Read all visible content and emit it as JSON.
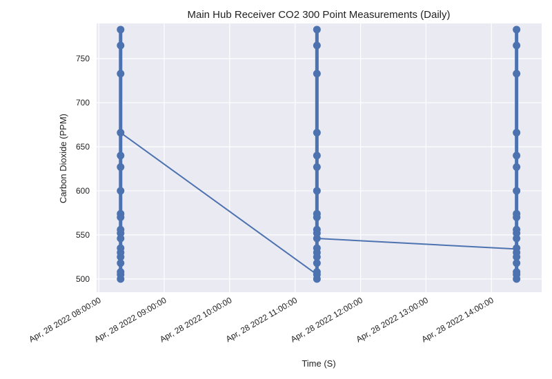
{
  "chart_data": {
    "type": "line",
    "title": "Main Hub Receiver CO2 300 Point Measurements (Daily)",
    "xlabel": "Time (S)",
    "ylabel": "Carbon Dioxide (PPM)",
    "xlim": [
      "2022-04-28 07:58:00",
      "2022-04-28 14:46:00"
    ],
    "ylim": [
      485,
      790
    ],
    "grid": true,
    "x_ticks": [
      {
        "value": "2022-04-28 08:00:00",
        "label": "Apr, 28 2022 08:00:00"
      },
      {
        "value": "2022-04-28 09:00:00",
        "label": "Apr, 28 2022 09:00:00"
      },
      {
        "value": "2022-04-28 10:00:00",
        "label": "Apr, 28 2022 10:00:00"
      },
      {
        "value": "2022-04-28 11:00:00",
        "label": "Apr, 28 2022 11:00:00"
      },
      {
        "value": "2022-04-28 12:00:00",
        "label": "Apr, 28 2022 12:00:00"
      },
      {
        "value": "2022-04-28 13:00:00",
        "label": "Apr, 28 2022 13:00:00"
      },
      {
        "value": "2022-04-28 14:00:00",
        "label": "Apr, 28 2022 14:00:00"
      }
    ],
    "y_ticks": [
      500,
      550,
      600,
      650,
      700,
      750
    ],
    "series": [
      {
        "color": "#4c72b0",
        "groups": [
          {
            "x": "2022-04-28 08:20:00",
            "y": [
              783,
              765,
              733,
              666,
              640,
              627,
              600,
              574,
              570,
              556,
              552,
              546,
              535,
              530,
              525,
              518,
              508,
              505,
              500
            ],
            "exit_y": 666
          },
          {
            "x": "2022-04-28 11:20:00",
            "y": [
              783,
              765,
              733,
              666,
              640,
              627,
              600,
              574,
              570,
              556,
              552,
              546,
              535,
              530,
              525,
              518,
              508,
              505,
              500
            ],
            "entry_y": 505,
            "exit_y": 546
          },
          {
            "x": "2022-04-28 14:23:00",
            "y": [
              783,
              765,
              733,
              666,
              640,
              627,
              600,
              574,
              570,
              556,
              552,
              546,
              535,
              530,
              525,
              518,
              508,
              505,
              500
            ],
            "entry_y": 534
          }
        ]
      }
    ]
  }
}
